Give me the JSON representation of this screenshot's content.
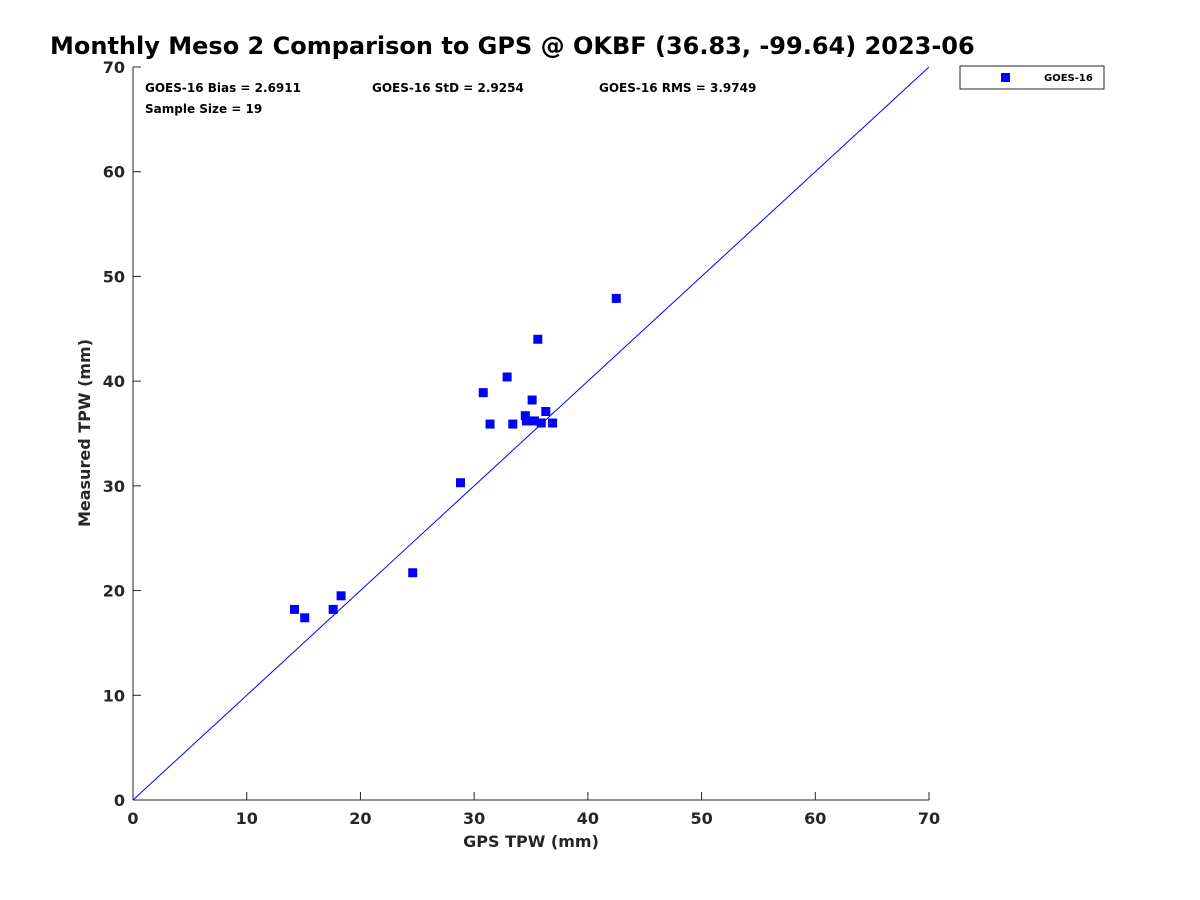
{
  "chart_data": {
    "type": "scatter",
    "title": "Monthly Meso 2 Comparison to GPS @ OKBF (36.83, -99.64) 2023-06",
    "xlabel": "GPS TPW (mm)",
    "ylabel": "Measured TPW (mm)",
    "xlim": [
      0,
      70
    ],
    "ylim": [
      0,
      70
    ],
    "xticks": [
      0,
      10,
      20,
      30,
      40,
      50,
      60,
      70
    ],
    "yticks": [
      0,
      10,
      20,
      30,
      40,
      50,
      60,
      70
    ],
    "grid": false,
    "legend_position": "outside-top-right",
    "reference_line": {
      "name": "1:1",
      "x": [
        0,
        70
      ],
      "y": [
        0,
        70
      ],
      "color": "#0000ff"
    },
    "stats": {
      "bias": "GOES-16 Bias = 2.6911",
      "std": "GOES-16 StD = 2.9254",
      "rms": "GOES-16 RMS = 3.9749",
      "sample_size": "Sample Size = 19"
    },
    "series": [
      {
        "name": "GOES-16",
        "color": "#0000ff",
        "marker": "square",
        "points": [
          {
            "x": 14.2,
            "y": 18.2
          },
          {
            "x": 15.1,
            "y": 17.4
          },
          {
            "x": 17.6,
            "y": 18.2
          },
          {
            "x": 18.3,
            "y": 19.5
          },
          {
            "x": 24.6,
            "y": 21.7
          },
          {
            "x": 28.8,
            "y": 30.3
          },
          {
            "x": 30.8,
            "y": 38.9
          },
          {
            "x": 31.4,
            "y": 35.9
          },
          {
            "x": 32.9,
            "y": 40.4
          },
          {
            "x": 33.4,
            "y": 35.9
          },
          {
            "x": 34.5,
            "y": 36.7
          },
          {
            "x": 34.6,
            "y": 36.2
          },
          {
            "x": 35.1,
            "y": 38.2
          },
          {
            "x": 35.3,
            "y": 36.2
          },
          {
            "x": 35.6,
            "y": 44.0
          },
          {
            "x": 35.9,
            "y": 36.0
          },
          {
            "x": 36.3,
            "y": 37.1
          },
          {
            "x": 36.9,
            "y": 36.0
          },
          {
            "x": 42.5,
            "y": 47.9
          }
        ]
      }
    ]
  }
}
